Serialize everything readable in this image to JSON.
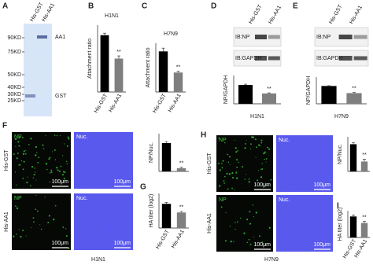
{
  "panel_letters": [
    "A",
    "B",
    "C",
    "D",
    "E",
    "F",
    "G",
    "H",
    "I"
  ],
  "gel": {
    "lanes": [
      "His-GST",
      "His-AA1"
    ],
    "markers": [
      "90KD",
      "75KD",
      "50KD",
      "40KD",
      "30KD",
      "25KD"
    ],
    "bands": [
      "AA1",
      "GST"
    ]
  },
  "blots": [
    {
      "lanes": [
        "His-GST",
        "His-AA1"
      ],
      "rows": [
        "IB:NP",
        "IB:GAPDH"
      ]
    },
    {
      "lanes": [
        "His-GST",
        "His-AA1"
      ],
      "rows": [
        "IB:NP",
        "IB:GAPDH"
      ]
    }
  ],
  "micrographs": [
    {
      "rows": [
        "His-GST",
        "His-AA1"
      ],
      "channels": [
        "NP",
        "Nuc."
      ],
      "scale": "100μm",
      "virus": "H1N1"
    },
    {
      "rows": [
        "His-GST",
        "His-AA1"
      ],
      "channels": [
        "NP",
        "Nuc."
      ],
      "scale": "100μm",
      "virus": "H7N9"
    }
  ],
  "chart_data": [
    {
      "type": "bar",
      "title": "H1N1",
      "ylabel": "Attachment ratio",
      "categories": [
        "His-GST",
        "His-AA1"
      ],
      "values": [
        0.85,
        0.5
      ],
      "errors": [
        0.03,
        0.04
      ],
      "colors": [
        "#000000",
        "#7f7f7f"
      ],
      "ylim": [
        0,
        1
      ],
      "annotation": "**"
    },
    {
      "type": "bar",
      "title": "H7N9",
      "ylabel": "Attachment ratio",
      "categories": [
        "His-GST",
        "His-AA1"
      ],
      "values": [
        1.0,
        0.48
      ],
      "errors": [
        0.08,
        0.03
      ],
      "colors": [
        "#000000",
        "#7f7f7f"
      ],
      "ylim": [
        0,
        1.2
      ],
      "annotation": "**"
    },
    {
      "type": "bar",
      "ylabel": "NP/GAPDH",
      "xlabel": "H1N1",
      "values": [
        1.0,
        0.55
      ],
      "errors": [
        0.04,
        0.03
      ],
      "colors": [
        "#000000",
        "#7f7f7f"
      ],
      "ylim": [
        0,
        1.5
      ],
      "annotation": "**"
    },
    {
      "type": "bar",
      "ylabel": "NP/GAPDH",
      "xlabel": "H7N9",
      "values": [
        1.0,
        0.6
      ],
      "errors": [
        0.02,
        0.03
      ],
      "colors": [
        "#000000",
        "#7f7f7f"
      ],
      "ylim": [
        0,
        1.5
      ],
      "annotation": "**"
    },
    {
      "type": "bar",
      "ylabel": "NP/Nuc.",
      "values": [
        0.09,
        0.01
      ],
      "errors": [
        0.005,
        0.003
      ],
      "colors": [
        "#000000",
        "#7f7f7f"
      ],
      "ylim": [
        0,
        0.12
      ],
      "annotation": "**"
    },
    {
      "type": "bar",
      "ylabel": "HA titer (log2)",
      "categories": [
        "His-GST",
        "His-AA1"
      ],
      "values": [
        7,
        4.5
      ],
      "errors": [
        0.4,
        0.3
      ],
      "colors": [
        "#000000",
        "#7f7f7f"
      ],
      "ylim": [
        0,
        10
      ],
      "annotation": "**"
    },
    {
      "type": "bar",
      "ylabel": "NP/Nuc.",
      "values": [
        0.11,
        0.04
      ],
      "errors": [
        0.006,
        0.01
      ],
      "colors": [
        "#000000",
        "#7f7f7f"
      ],
      "ylim": [
        0,
        0.14
      ],
      "annotation": "**"
    },
    {
      "type": "bar",
      "ylabel": "HA titer (log2)",
      "categories": [
        "His-GST",
        "His-AA1"
      ],
      "values": [
        5.5,
        3.8
      ],
      "errors": [
        0.4,
        0.4
      ],
      "colors": [
        "#000000",
        "#7f7f7f"
      ],
      "ylim": [
        0,
        7
      ],
      "annotation": "**"
    }
  ]
}
